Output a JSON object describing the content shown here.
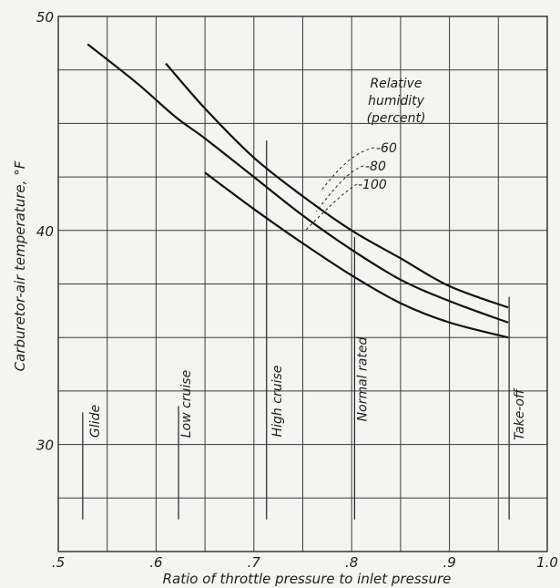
{
  "chart_data": {
    "type": "line",
    "title": "",
    "xlabel": "Ratio of throttle pressure to inlet pressure",
    "ylabel": "Carburetor-air temperature, °F",
    "xlim": [
      0.5,
      1.0
    ],
    "ylim": [
      25,
      50
    ],
    "xticks": [
      ".5",
      ".6",
      ".7",
      ".8",
      ".9",
      "1.0"
    ],
    "yticks": [
      "30",
      "40",
      "50"
    ],
    "grid": true,
    "legend_title": [
      "Relative",
      "humidity",
      "(percent)"
    ],
    "series": [
      {
        "name": "-60",
        "x": [
          0.61,
          0.65,
          0.7,
          0.75,
          0.8,
          0.85,
          0.9,
          0.96
        ],
        "y": [
          47.8,
          45.7,
          43.4,
          41.6,
          40.0,
          38.7,
          37.4,
          36.4
        ]
      },
      {
        "name": "-80",
        "x": [
          0.53,
          0.58,
          0.62,
          0.65,
          0.7,
          0.75,
          0.8,
          0.85,
          0.9,
          0.96
        ],
        "y": [
          48.7,
          46.9,
          45.3,
          44.3,
          42.5,
          40.7,
          39.1,
          37.7,
          36.7,
          35.7
        ]
      },
      {
        "name": "-100",
        "x": [
          0.65,
          0.7,
          0.75,
          0.8,
          0.85,
          0.9,
          0.96
        ],
        "y": [
          42.7,
          41.0,
          39.4,
          37.9,
          36.6,
          35.7,
          35.0
        ]
      }
    ],
    "zones": [
      {
        "label": "Glide",
        "x": 0.525,
        "y_range": [
          26.5,
          31.5
        ]
      },
      {
        "label": "Low cruise",
        "x": 0.623,
        "y_range": [
          26.5,
          31.8
        ]
      },
      {
        "label": "High cruise",
        "x": 0.713,
        "y_range": [
          26.5,
          44.2
        ]
      },
      {
        "label": "Normal rated",
        "x": 0.803,
        "y_range": [
          26.5,
          39.7
        ]
      },
      {
        "label": "Take-off",
        "x": 0.961,
        "y_range": [
          26.5,
          36.9
        ]
      }
    ]
  }
}
